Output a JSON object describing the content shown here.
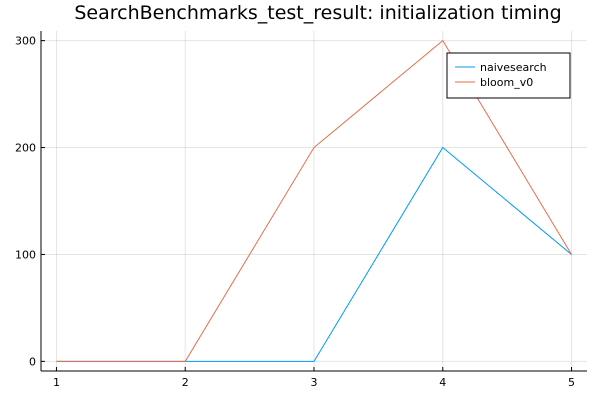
{
  "chart_data": {
    "type": "line",
    "title": "SearchBenchmarks_test_result: initialization timing",
    "xlabel": "",
    "ylabel": "",
    "x": [
      1,
      2,
      3,
      4,
      5
    ],
    "xlim": [
      0.88,
      5.12
    ],
    "ylim": [
      -9,
      309
    ],
    "xticks": [
      "1",
      "2",
      "3",
      "4",
      "5"
    ],
    "yticks": [
      0,
      100,
      200,
      300
    ],
    "ytick_labels": [
      "0",
      "100",
      "200",
      "300"
    ],
    "grid": true,
    "legend_position": "top-right",
    "series": [
      {
        "name": "naivesearch",
        "values": [
          0,
          0,
          0,
          200,
          100
        ],
        "color": "#009AFA"
      },
      {
        "name": "bloom_v0",
        "values": [
          0,
          0,
          200,
          300,
          100
        ],
        "color": "#E36F47"
      }
    ]
  }
}
